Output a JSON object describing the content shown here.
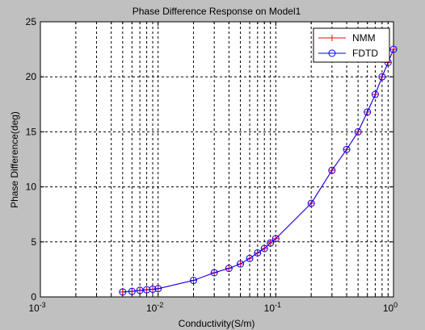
{
  "chart_data": {
    "type": "line",
    "title": "Phase Difference Response on Model1",
    "xlabel": "Conductivity(S/m)",
    "ylabel": "Phase Difference(deg)",
    "x_scale": "log",
    "xlim": [
      0.001,
      1
    ],
    "ylim": [
      0,
      25
    ],
    "x_tick_labels": [
      {
        "base": "10",
        "exp": "-3",
        "value": 0.001
      },
      {
        "base": "10",
        "exp": "-2",
        "value": 0.01
      },
      {
        "base": "10",
        "exp": "-1",
        "value": 0.1
      },
      {
        "base": "10",
        "exp": "0",
        "value": 1
      }
    ],
    "y_ticks": [
      0,
      5,
      10,
      15,
      20,
      25
    ],
    "grid": true,
    "legend_position": "top-right",
    "x": [
      0.005,
      0.006,
      0.007,
      0.008,
      0.009,
      0.01,
      0.02,
      0.03,
      0.04,
      0.05,
      0.06,
      0.07,
      0.08,
      0.09,
      0.1,
      0.2,
      0.3,
      0.4,
      0.5,
      0.6,
      0.7,
      0.8,
      0.9,
      1.0
    ],
    "series": [
      {
        "name": "NMM",
        "color": "#ff0000",
        "marker": "plus",
        "values": [
          0.45,
          0.5,
          0.6,
          0.65,
          0.7,
          0.75,
          1.5,
          2.2,
          2.6,
          3.0,
          3.5,
          4.0,
          4.4,
          4.9,
          5.3,
          8.5,
          11.5,
          13.4,
          15.0,
          16.8,
          18.4,
          20.0,
          21.3,
          22.5
        ]
      },
      {
        "name": "FDTD",
        "color": "#0000ff",
        "marker": "circle",
        "values": [
          0.45,
          0.5,
          0.6,
          0.65,
          0.7,
          0.75,
          1.5,
          2.2,
          2.6,
          3.0,
          3.5,
          4.0,
          4.4,
          4.9,
          5.3,
          8.5,
          11.5,
          13.4,
          15.0,
          16.8,
          18.4,
          20.0,
          21.3,
          22.5
        ]
      }
    ]
  }
}
